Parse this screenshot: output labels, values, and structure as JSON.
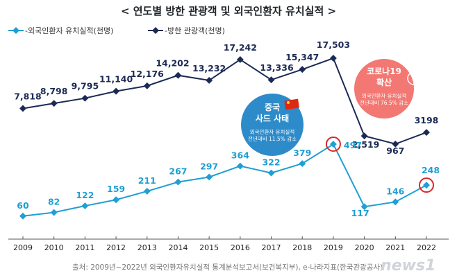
{
  "chart_data": {
    "type": "line",
    "title": "< 연도별 방한 관광객 및 외국인환자 유치실적 >",
    "x": [
      "2009",
      "2010",
      "2011",
      "2012",
      "2013",
      "2014",
      "2015",
      "2016",
      "2017",
      "2018",
      "2019",
      "2020",
      "2021",
      "2022"
    ],
    "series": [
      {
        "name": "-방한 관광객(천명)",
        "color": "#1b2a55",
        "values": [
          7818,
          8798,
          9795,
          11140,
          12176,
          14202,
          13232,
          17242,
          13336,
          15347,
          17503,
          2519,
          967,
          3198
        ],
        "labels": [
          "7,818",
          "8,798",
          "9,795",
          "11,140",
          "12,176",
          "14,202",
          "13,232",
          "17,242",
          "13,336",
          "15,347",
          "17,503",
          "2,519",
          "967",
          "3198"
        ]
      },
      {
        "name": "-외국인환자 유치실적(천명)",
        "color": "#1f9fd3",
        "values": [
          60,
          82,
          122,
          159,
          211,
          267,
          297,
          364,
          322,
          379,
          497,
          117,
          146,
          248
        ],
        "labels": [
          "60",
          "82",
          "122",
          "159",
          "211",
          "267",
          "297",
          "364",
          "322",
          "379",
          "497",
          "117",
          "146",
          "248"
        ]
      }
    ],
    "highlighted_points": [
      {
        "series": 1,
        "x": "2019"
      },
      {
        "series": 1,
        "x": "2022"
      }
    ],
    "annotations": [
      {
        "x": "2017",
        "title_lines": [
          "중국",
          "사드 사태"
        ],
        "sub_lines": [
          "외국인환자 유치실적",
          "전년대비 11.5% 감소"
        ],
        "color": "#2385c7"
      },
      {
        "x": "2020",
        "title_lines": [
          "코로나19",
          "확산"
        ],
        "sub_lines": [
          "외국인환자 유치실적",
          "전년대비 76.5% 감소"
        ],
        "color": "#f2706a"
      }
    ],
    "grid": false,
    "legend_position": "top-left"
  },
  "source": "출처: 2009년~2022년 외국인환자유치실적 통계분석보고서(보건복지부), e-나라지표(한국관광공사)",
  "watermark": "news1"
}
